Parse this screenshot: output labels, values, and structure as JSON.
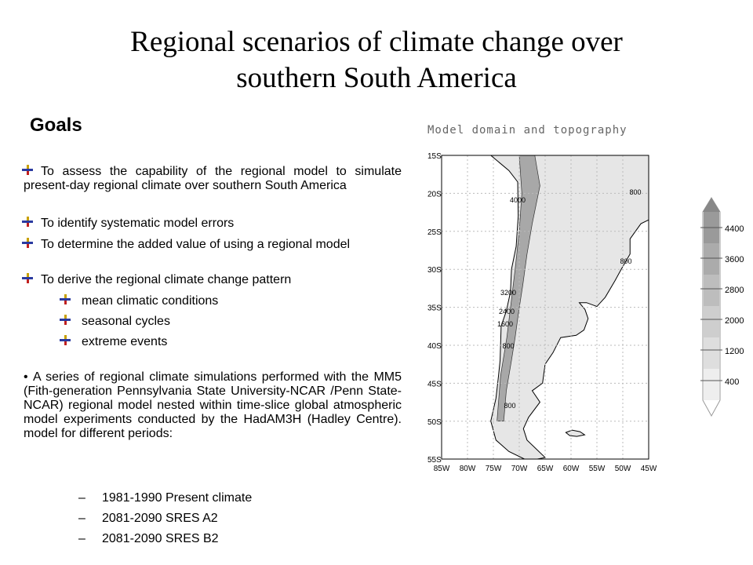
{
  "title": [
    "Regional scenarios of climate change over",
    "southern South America"
  ],
  "goals": {
    "heading": "Goals",
    "bullets": [
      "To assess the capability of the regional model to simulate present-day regional climate over southern South America",
      "To identify systematic model errors",
      "To determine the added value of using a regional model",
      "To derive the regional climate change pattern"
    ],
    "sub_bullets": [
      "mean climatic conditions",
      "seasonal cycles",
      "extreme events"
    ],
    "paragraph": "A series of regional climate simulations performed with the MM5 (Fith-generation Pennsylvania State University-NCAR /Penn State-NCAR) regional model nested within time-slice global atmospheric model experiments conducted by the HadAM3H (Hadley Centre). model for different periods:",
    "periods": [
      "1981-1990 Present climate",
      "2081-2090 SRES A2",
      "2081-2090 SRES B2"
    ]
  },
  "map": {
    "title": "Model domain and topography",
    "lat_labels": [
      "15S",
      "20S",
      "25S",
      "30S",
      "35S",
      "40S",
      "45S",
      "50S",
      "55S"
    ],
    "lon_labels": [
      "85W",
      "80W",
      "75W",
      "70W",
      "65W",
      "60W",
      "55W",
      "50W",
      "45W"
    ],
    "contour_labels": [
      800,
      4000,
      800,
      3200,
      2400,
      1600,
      800,
      800
    ]
  },
  "colorbar": {
    "labels": [
      4400,
      3600,
      2800,
      2000,
      1200,
      400
    ]
  }
}
